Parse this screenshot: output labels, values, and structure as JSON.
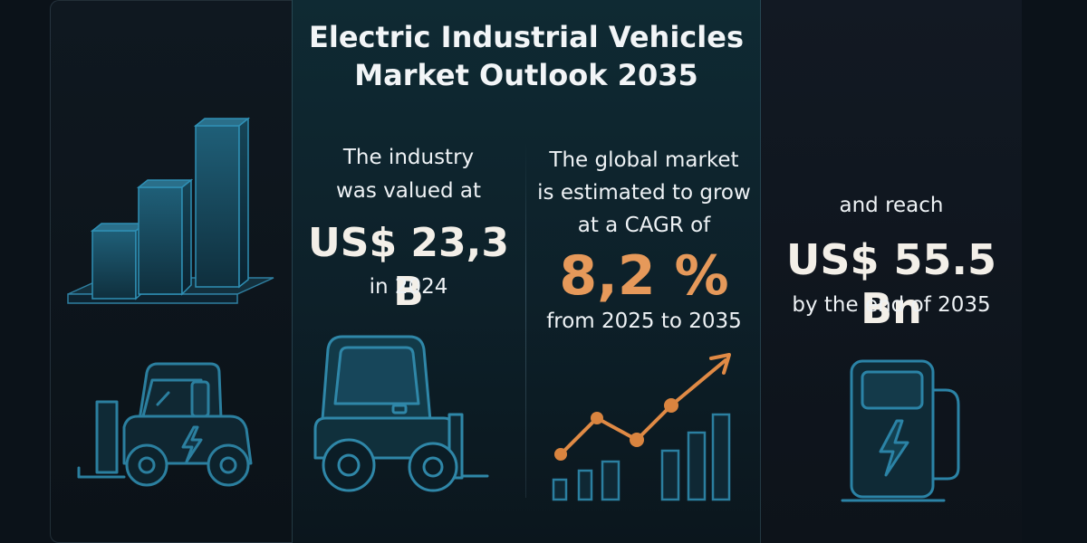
{
  "title": {
    "line1": "Electric Industrial Vehicles",
    "line2": "Market Outlook 2035"
  },
  "col_value": {
    "line1": "The industry",
    "line2": "was valued at",
    "value": "US$ 23,3 B",
    "year": "in 2024"
  },
  "col_growth": {
    "line1": "The global market",
    "line2": "is estimated to grow",
    "line3": "at a CAGR of",
    "rate": "8,2 %",
    "period": "from 2025 to 2035"
  },
  "col_reach": {
    "intro": "and reach",
    "value": "US$ 55.5 Bn",
    "period": "by the end of 2035"
  },
  "icons": [
    "bar-chart-3d-icon",
    "forklift-icon",
    "utility-truck-icon",
    "growth-chart-icon",
    "charging-station-icon"
  ],
  "colors": {
    "background": "#0b1219",
    "accent_orange": "#e6995a",
    "icon_blue": "#2f7fa0"
  }
}
